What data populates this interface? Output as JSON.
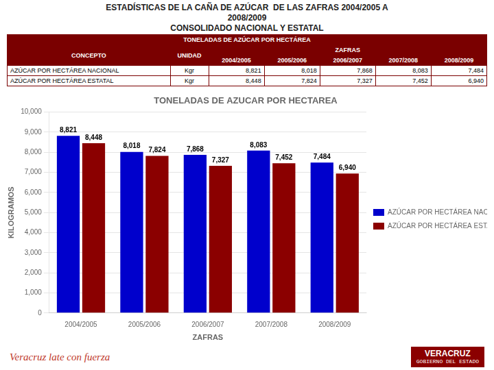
{
  "chart_data": {
    "type": "bar",
    "title": [
      "ESTADÍSTICAS DE LA CAÑA DE AZÚCAR  DE LAS ZAFRAS 2004/2005 A",
      "2008/2009",
      "CONSOLIDADO NACIONAL Y ESTATAL"
    ],
    "subtitle": "TONELADAS DE AZUCAR POR HECTAREA",
    "categories": [
      "2004/2005",
      "2005/2006",
      "2006/2007",
      "2007/2008",
      "2008/2009"
    ],
    "series": [
      {
        "name": "AZÚCAR POR HECTÁREA NACIONAL",
        "color": "#0000cc",
        "values": [
          8821,
          8018,
          7868,
          8083,
          7484
        ],
        "value_labels": [
          "8,821",
          "8,018",
          "7,868",
          "8,083",
          "7,484"
        ]
      },
      {
        "name": "AZÚCAR POR HECTÁREA ESTATAL",
        "color": "#8b0000",
        "values": [
          8448,
          7824,
          7327,
          7452,
          6940
        ],
        "value_labels": [
          "8,448",
          "7,824",
          "7,327",
          "7,452",
          "6,940"
        ]
      }
    ],
    "x_label": "ZAFRAS",
    "y_label": "KILOGRAMOS",
    "ylim": [
      0,
      10000
    ],
    "yticks": [
      0,
      {
        "value": 1000,
        "label": "1,000"
      },
      {
        "value": 2000,
        "label": "2,000"
      },
      {
        "value": 3000,
        "label": "3,000"
      },
      {
        "value": 4000,
        "label": "4,000"
      },
      {
        "value": 5000,
        "label": "5,000"
      },
      {
        "value": 6000,
        "label": "6,000"
      },
      {
        "value": 7000,
        "label": "7,000"
      },
      {
        "value": 8000,
        "label": "8,000"
      },
      {
        "value": 9000,
        "label": "9,000"
      },
      {
        "value": 10000,
        "label": "10,000"
      }
    ],
    "grid": true,
    "legend": "right",
    "data_labels": true,
    "table": {
      "title": "TONELADAS DE AZÚCAR POR HECTÁREA",
      "columns": [
        "CONCEPTO",
        "UNIDAD",
        "ZAFRAS"
      ],
      "unit": "Kgr"
    },
    "annotations": [
      "Veracruz late con fuerza",
      "VERACRUZ",
      "GOBIERNO DEL ESTADO"
    ]
  }
}
